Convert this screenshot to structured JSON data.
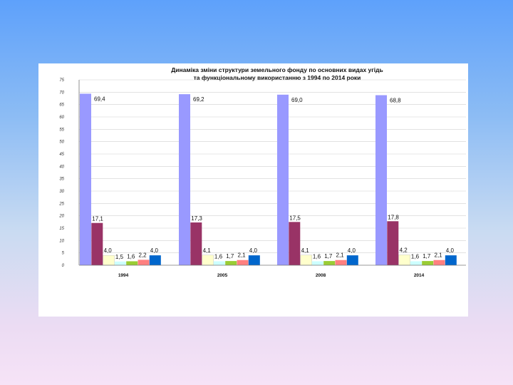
{
  "chart_data": {
    "type": "bar",
    "title_line1": "Динаміка зміни структури земельного фонду по основних видах угідь",
    "title_line2": "та функціональному використанню з 1994 по 2014 роки",
    "categories": [
      "1994",
      "2005",
      "2008",
      "2014"
    ],
    "ylim": [
      0,
      75
    ],
    "ytick_step": 5,
    "ytick_labels": [
      "0",
      "5",
      "10",
      "15",
      "20",
      "25",
      "30",
      "35",
      "40",
      "45",
      "50",
      "55",
      "60",
      "65",
      "70",
      "75"
    ],
    "grid": true,
    "series": [
      {
        "name": "series-1",
        "color": "#9999ff",
        "values": [
          69.4,
          69.2,
          69.0,
          68.8
        ],
        "labels": [
          "69,4",
          "69,2",
          "69,0",
          "68,8"
        ]
      },
      {
        "name": "series-2",
        "color": "#993366",
        "values": [
          17.1,
          17.3,
          17.5,
          17.8
        ],
        "labels": [
          "17,1",
          "17,3",
          "17,5",
          "17,8"
        ]
      },
      {
        "name": "series-3",
        "color": "#ffffcc",
        "values": [
          4.0,
          4.1,
          4.1,
          4.2
        ],
        "labels": [
          "4,0",
          "4,1",
          "4,1",
          "4,2"
        ]
      },
      {
        "name": "series-4",
        "color": "#ccffff",
        "values": [
          1.5,
          1.6,
          1.6,
          1.6
        ],
        "labels": [
          "1,5",
          "1,6",
          "1,6",
          "1,6"
        ]
      },
      {
        "name": "series-5",
        "color": "#99cc33",
        "values": [
          1.6,
          1.7,
          1.7,
          1.7
        ],
        "labels": [
          "1,6",
          "1,7",
          "1,7",
          "1,7"
        ]
      },
      {
        "name": "series-6",
        "color": "#ff8080",
        "values": [
          2.2,
          2.1,
          2.1,
          2.1
        ],
        "labels": [
          "2,2",
          "2,1",
          "2,1",
          "2,1"
        ]
      },
      {
        "name": "series-7",
        "color": "#0066cc",
        "values": [
          4.0,
          4.0,
          4.0,
          4.0
        ],
        "labels": [
          "4,0",
          "4,0",
          "4,0",
          "4,0"
        ]
      }
    ]
  }
}
